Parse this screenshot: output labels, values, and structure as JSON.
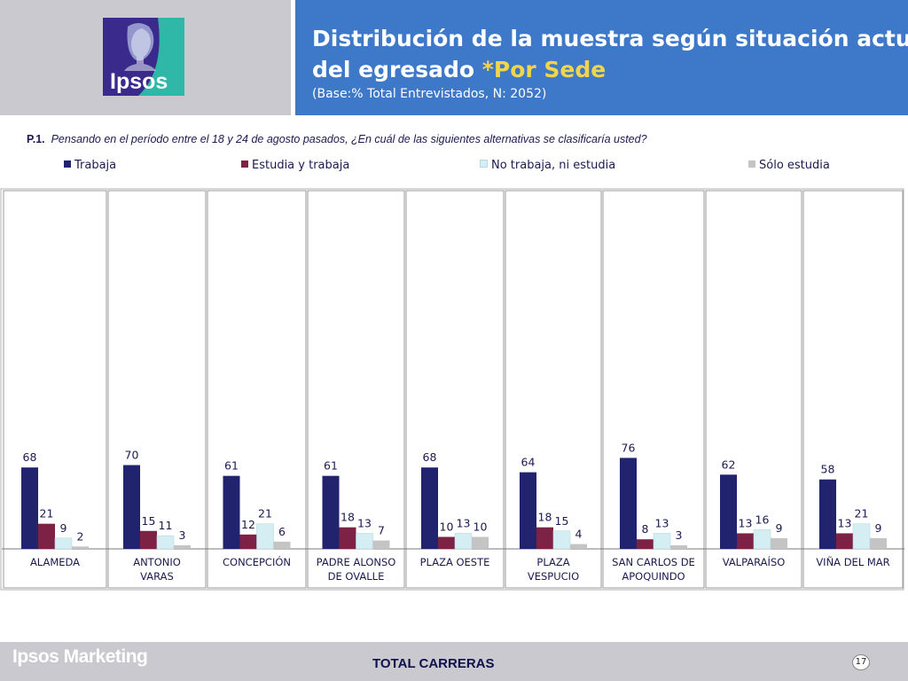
{
  "header": {
    "brand": "Ipsos",
    "title_line1": "Distribución de la muestra según situación actual",
    "title_line2_prefix": "del egresado ",
    "title_line2_highlight": "*Por Sede",
    "subtitle": "(Base:% Total Entrevistados, N: 2052)"
  },
  "question": {
    "tag": "P.1.",
    "text": "Pensando en el período entre el 18 y 24 de agosto pasados, ¿En cuál de las siguientes alternativas se clasificaría usted?"
  },
  "legend": [
    {
      "label": "Trabaja",
      "color": "#22236e"
    },
    {
      "label": "Estudia y trabaja",
      "color": "#7e2245"
    },
    {
      "label": "No trabaja, ni estudia",
      "color": "#d4eef4"
    },
    {
      "label": "Sólo estudia",
      "color": "#c4c4c4"
    }
  ],
  "chart_data": {
    "type": "bar",
    "categories": [
      "ALAMEDA",
      "ANTONIO VARAS",
      "CONCEPCIÓN",
      "PADRE ALONSO DE OVALLE",
      "PLAZA OESTE",
      "PLAZA VESPUCIO",
      "SAN CARLOS DE APOQUINDO",
      "VALPARAÍSO",
      "VIÑA DEL MAR"
    ],
    "category_lines": [
      [
        "ALAMEDA"
      ],
      [
        "ANTONIO",
        "VARAS"
      ],
      [
        "CONCEPCIÓN"
      ],
      [
        "PADRE ALONSO",
        "DE OVALLE"
      ],
      [
        "PLAZA OESTE"
      ],
      [
        "PLAZA",
        "VESPUCIO"
      ],
      [
        "SAN CARLOS DE",
        "APOQUINDO"
      ],
      [
        "VALPARAÍSO"
      ],
      [
        "VIÑA DEL MAR"
      ]
    ],
    "series": [
      {
        "name": "Trabaja",
        "color": "#22236e",
        "values": [
          68,
          70,
          61,
          61,
          68,
          64,
          76,
          62,
          58
        ]
      },
      {
        "name": "Estudia y trabaja",
        "color": "#7e2245",
        "values": [
          21,
          15,
          12,
          18,
          10,
          18,
          8,
          13,
          13
        ]
      },
      {
        "name": "No trabaja, ni estudia",
        "color": "#d4eef4",
        "values": [
          9,
          11,
          21,
          13,
          13,
          15,
          13,
          16,
          21
        ]
      },
      {
        "name": "Sólo estudia",
        "color": "#c4c4c4",
        "values": [
          2,
          3,
          6,
          7,
          10,
          4,
          3,
          9,
          9
        ]
      }
    ],
    "ylim": [
      0,
      100
    ],
    "grid": false,
    "legend_position": "top"
  },
  "footer": {
    "brand": "Ipsos Marketing",
    "total_label": "TOTAL CARRERAS",
    "page_number": "17"
  }
}
